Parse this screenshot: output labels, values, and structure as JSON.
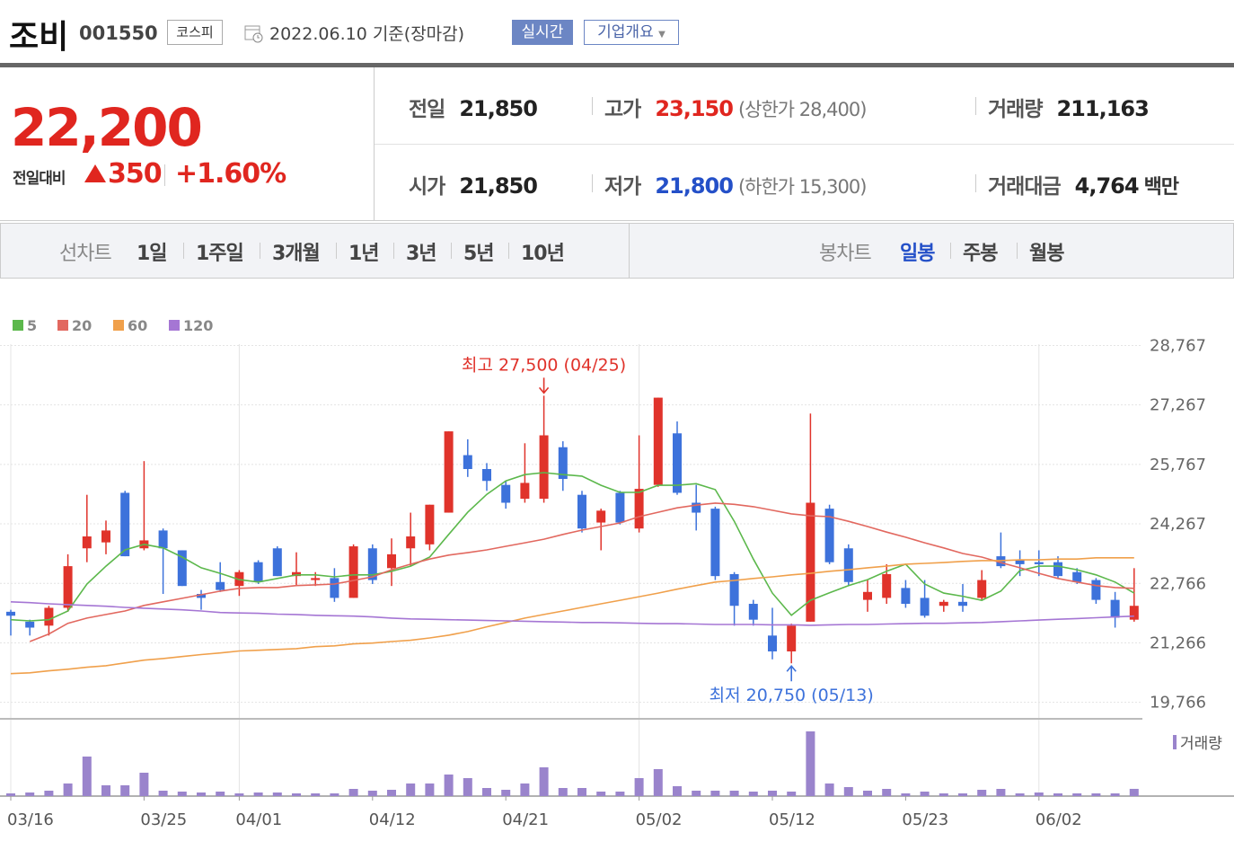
{
  "header": {
    "name": "조비",
    "code": "001550",
    "market": "코스피",
    "date": "2022.06.10 기준(장마감)",
    "realtime": "실시간",
    "company": "기업개요"
  },
  "price": {
    "current": "22,200",
    "change_label": "전일대비",
    "change": "350",
    "change_pct": "+1.60%"
  },
  "stats": [
    {
      "label": "전일",
      "value": "21,850"
    },
    {
      "label": "고가",
      "value": "23,150",
      "note": "(상한가 28,400)"
    },
    {
      "label": "거래량",
      "value": "211,163"
    },
    {
      "label": "시가",
      "value": "21,850"
    },
    {
      "label": "저가",
      "value": "21,800",
      "note": "(하한가 15,300)"
    },
    {
      "label": "거래대금",
      "value": "4,764",
      "unit": "백만"
    }
  ],
  "tabs": {
    "line_label": "선차트",
    "line_tabs": [
      "1일",
      "1주일",
      "3개월",
      "1년",
      "3년",
      "5년",
      "10년"
    ],
    "candle_label": "봉차트",
    "candle_tabs": [
      "일봉",
      "주봉",
      "월봉"
    ]
  },
  "chart_data": {
    "type": "candlestick",
    "categories": [
      "03/16",
      null,
      null,
      null,
      null,
      null,
      null,
      "03/25",
      null,
      null,
      null,
      null,
      "04/01",
      null,
      null,
      null,
      null,
      null,
      null,
      "04/12",
      null,
      null,
      null,
      null,
      null,
      null,
      "04/21",
      null,
      null,
      null,
      null,
      null,
      null,
      "05/02",
      null,
      null,
      null,
      null,
      null,
      null,
      "05/12",
      null,
      null,
      null,
      null,
      null,
      null,
      "05/23",
      null,
      null,
      null,
      null,
      null,
      null,
      "06/02",
      null,
      null,
      null,
      null,
      null
    ],
    "open": [
      22050,
      21800,
      21700,
      22150,
      23650,
      23800,
      25050,
      23650,
      24100,
      23600,
      22500,
      22800,
      22700,
      23300,
      23650,
      22950,
      22850,
      22900,
      22400,
      23650,
      23150,
      23650,
      23750,
      24550,
      26000,
      25650,
      25250,
      24900,
      24900,
      26200,
      25000,
      24300,
      25050,
      24150,
      25250,
      26550,
      24800,
      24650,
      23000,
      22250,
      21450,
      21050,
      21800,
      24650,
      23650,
      22350,
      22400,
      22650,
      22400,
      22200,
      22300,
      22400,
      23450,
      23350,
      23300,
      23300,
      23050,
      22850,
      22350,
      21850
    ],
    "high": [
      22100,
      21850,
      22200,
      23500,
      25000,
      24350,
      25100,
      25850,
      24150,
      23600,
      22600,
      23300,
      23100,
      23350,
      23700,
      23550,
      23050,
      23150,
      23750,
      23750,
      23900,
      24550,
      24750,
      26600,
      26400,
      25800,
      25350,
      26300,
      27500,
      26350,
      25100,
      24650,
      25100,
      26500,
      27450,
      26850,
      25250,
      24700,
      23050,
      22350,
      22150,
      21750,
      27050,
      24750,
      23750,
      22850,
      23250,
      22850,
      22850,
      22350,
      22750,
      23100,
      24050,
      23600,
      23600,
      23450,
      23150,
      22900,
      22550,
      23150
    ],
    "low": [
      21450,
      21450,
      21450,
      22050,
      23300,
      23500,
      23450,
      23600,
      22500,
      22700,
      22100,
      22550,
      22450,
      22750,
      22950,
      22700,
      22700,
      22300,
      22400,
      22750,
      22700,
      23200,
      23600,
      24550,
      25450,
      25100,
      24650,
      24800,
      24800,
      25100,
      24050,
      23600,
      24250,
      24050,
      25200,
      25000,
      24100,
      22850,
      21700,
      21700,
      20850,
      20750,
      21800,
      23250,
      22700,
      22050,
      22250,
      22150,
      21900,
      22050,
      22050,
      22350,
      23150,
      22950,
      22950,
      22900,
      22750,
      22250,
      21650,
      21800
    ],
    "close": [
      21950,
      21650,
      22150,
      23200,
      23950,
      24100,
      23450,
      23850,
      23650,
      22700,
      22400,
      22600,
      23050,
      22800,
      22950,
      23050,
      22900,
      22400,
      23700,
      22850,
      23500,
      23950,
      24750,
      26600,
      25650,
      25350,
      24800,
      25300,
      26500,
      25400,
      24150,
      24600,
      24300,
      25150,
      27450,
      25050,
      24550,
      22950,
      22200,
      21850,
      21050,
      21700,
      24800,
      23300,
      22800,
      22550,
      23000,
      22250,
      21950,
      22300,
      22200,
      22850,
      23200,
      23250,
      23250,
      22950,
      22800,
      22350,
      21900,
      22200
    ],
    "up_color": "#e0332b",
    "down_color": "#3d72db",
    "series": [
      {
        "name": "5",
        "color": "#5cb84c",
        "values": [
          21850,
          21820,
          21850,
          22070,
          22750,
          23200,
          23610,
          23750,
          23660,
          23430,
          23160,
          23020,
          22860,
          22800,
          22890,
          22980,
          22980,
          22930,
          22980,
          22980,
          23070,
          23200,
          23430,
          24000,
          24560,
          25010,
          25350,
          25510,
          25560,
          25510,
          25470,
          25240,
          25060,
          25060,
          25240,
          25240,
          25280,
          25130,
          24330,
          23380,
          22520,
          21960,
          22340,
          22530,
          22710,
          22860,
          23070,
          23250,
          22750,
          22520,
          22440,
          22340,
          22570,
          23090,
          23200,
          23200,
          23110,
          22980,
          22800,
          22520
        ]
      },
      {
        "name": "20",
        "color": "#e2685f",
        "values": [
          null,
          21300,
          21490,
          21760,
          21890,
          21980,
          22070,
          22210,
          22300,
          22390,
          22480,
          22570,
          22640,
          22660,
          22660,
          22710,
          22730,
          22750,
          22840,
          22930,
          23110,
          23250,
          23380,
          23480,
          23540,
          23610,
          23700,
          23790,
          23880,
          24000,
          24110,
          24200,
          24290,
          24450,
          24560,
          24670,
          24740,
          24790,
          24760,
          24700,
          24610,
          24520,
          24470,
          24450,
          24330,
          24200,
          24060,
          23930,
          23790,
          23660,
          23520,
          23430,
          23290,
          23160,
          23020,
          22890,
          22800,
          22710,
          22660,
          22640
        ]
      },
      {
        "name": "60",
        "color": "#f0a04b",
        "values": [
          20490,
          20510,
          20560,
          20600,
          20650,
          20690,
          20760,
          20830,
          20870,
          20920,
          20970,
          21010,
          21060,
          21080,
          21100,
          21120,
          21170,
          21190,
          21240,
          21260,
          21300,
          21330,
          21390,
          21460,
          21550,
          21670,
          21780,
          21890,
          21980,
          22070,
          22160,
          22250,
          22340,
          22430,
          22520,
          22620,
          22710,
          22800,
          22840,
          22890,
          22930,
          22980,
          23020,
          23070,
          23110,
          23160,
          23200,
          23250,
          23270,
          23290,
          23320,
          23340,
          23340,
          23360,
          23360,
          23380,
          23380,
          23410,
          23410,
          23410
        ]
      },
      {
        "name": "120",
        "color": "#a576d4",
        "values": [
          22300,
          22280,
          22250,
          22230,
          22210,
          22190,
          22160,
          22140,
          22120,
          22100,
          22070,
          22030,
          22020,
          22010,
          21990,
          21980,
          21960,
          21950,
          21940,
          21920,
          21890,
          21870,
          21860,
          21850,
          21840,
          21830,
          21820,
          21810,
          21800,
          21790,
          21780,
          21780,
          21770,
          21760,
          21750,
          21750,
          21740,
          21730,
          21730,
          21730,
          21720,
          21720,
          21710,
          21720,
          21730,
          21730,
          21740,
          21750,
          21760,
          21760,
          21770,
          21780,
          21800,
          21820,
          21840,
          21860,
          21880,
          21900,
          21920,
          21940
        ]
      }
    ],
    "volume": {
      "name": "거래량",
      "color": "#9a84cc",
      "values": [
        79000,
        105000,
        158000,
        368000,
        1155000,
        315000,
        315000,
        683000,
        158000,
        131000,
        105000,
        131000,
        79000,
        105000,
        105000,
        79000,
        79000,
        79000,
        210000,
        158000,
        184000,
        368000,
        368000,
        630000,
        525000,
        236000,
        184000,
        368000,
        840000,
        236000,
        236000,
        131000,
        131000,
        525000,
        788000,
        289000,
        158000,
        158000,
        158000,
        131000,
        158000,
        131000,
        1890000,
        368000,
        263000,
        158000,
        210000,
        79000,
        131000,
        79000,
        79000,
        184000,
        210000,
        79000,
        105000,
        79000,
        79000,
        79000,
        79000,
        211163
      ],
      "ylim": [
        0,
        2100000
      ]
    },
    "annotations": [
      {
        "text": "최고 27,500 (04/25)",
        "color": "#e0332b"
      },
      {
        "text": "최저 20,750 (05/13)",
        "color": "#3d72db"
      }
    ],
    "ylim": [
      19350,
      28800
    ],
    "yticks": [
      {
        "value": 28767,
        "label": "28,767"
      },
      {
        "value": 27267,
        "label": "27,267"
      },
      {
        "value": 25767,
        "label": "25,767"
      },
      {
        "value": 24267,
        "label": "24,267"
      },
      {
        "value": 22766,
        "label": "22,766"
      },
      {
        "value": 21266,
        "label": "21,266"
      },
      {
        "value": 19766,
        "label": "19,766"
      }
    ],
    "grid": true
  }
}
